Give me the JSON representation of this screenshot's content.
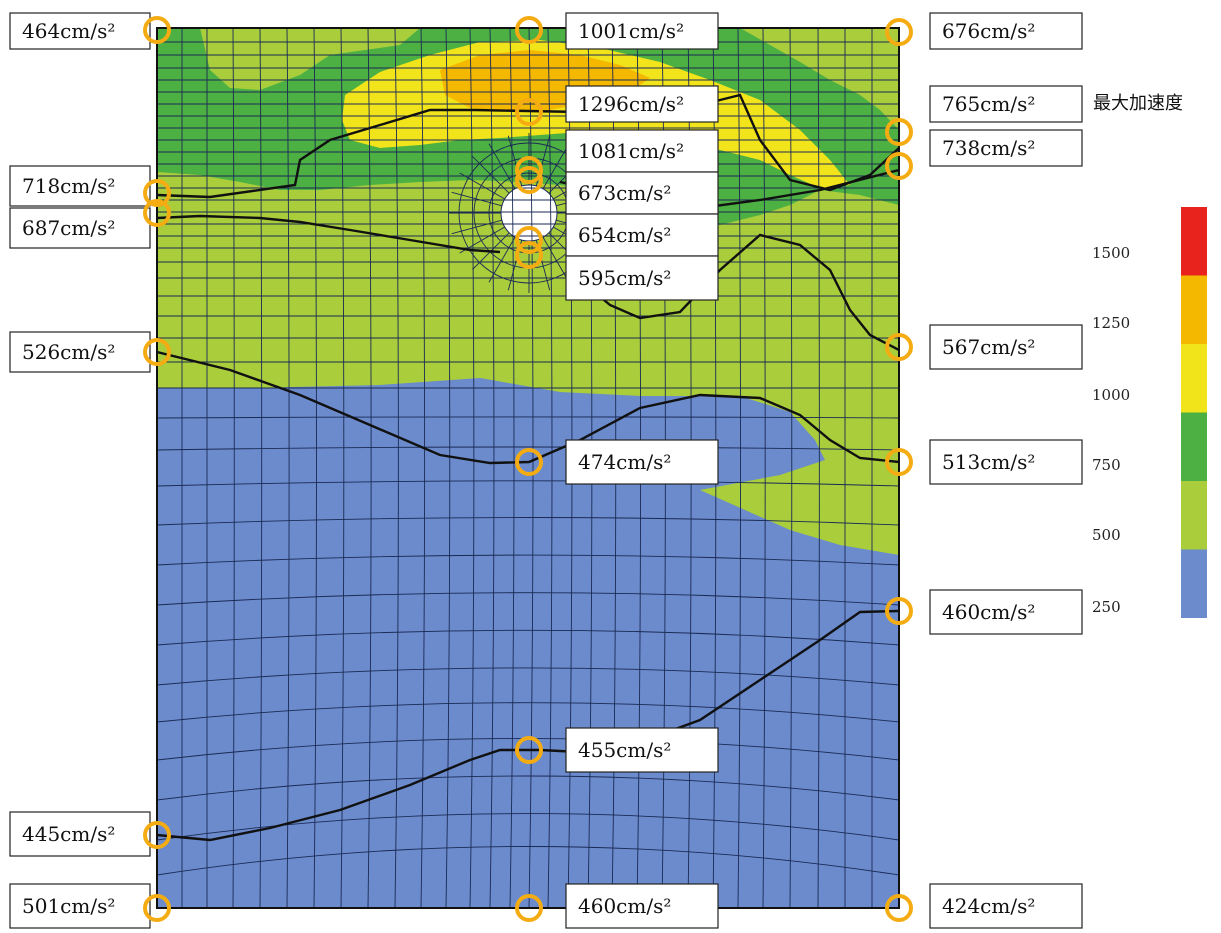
{
  "legend": {
    "title": "最大加速度",
    "ticks": [
      "1500",
      "1250",
      "1000",
      "750",
      "500",
      "250"
    ],
    "colors": [
      "#e8231e",
      "#f5b800",
      "#f2e41a",
      "#4cb043",
      "#a9cd3b",
      "#6b8bcc"
    ]
  },
  "colors": {
    "band_250_500": "#6b8bcc",
    "band_500_750": "#a9cd3b",
    "band_750_1000": "#4cb043",
    "band_1000_1250": "#f2e41a",
    "band_1250_1500": "#f5b800",
    "marker": "#f5ac12"
  },
  "points": [
    {
      "name": "point-left-top",
      "value": "464cm/s²"
    },
    {
      "name": "point-center-top",
      "value": "1001cm/s²"
    },
    {
      "name": "point-right-top",
      "value": "676cm/s²"
    },
    {
      "name": "point-right-765",
      "value": "765cm/s²"
    },
    {
      "name": "point-center-1296",
      "value": "1296cm/s²"
    },
    {
      "name": "point-center-1081",
      "value": "1081cm/s²"
    },
    {
      "name": "point-right-738",
      "value": "738cm/s²"
    },
    {
      "name": "point-left-718",
      "value": "718cm/s²"
    },
    {
      "name": "point-center-673",
      "value": "673cm/s²"
    },
    {
      "name": "point-left-687",
      "value": "687cm/s²"
    },
    {
      "name": "point-center-654",
      "value": "654cm/s²"
    },
    {
      "name": "point-center-595",
      "value": "595cm/s²"
    },
    {
      "name": "point-left-526",
      "value": "526cm/s²"
    },
    {
      "name": "point-right-567",
      "value": "567cm/s²"
    },
    {
      "name": "point-center-474",
      "value": "474cm/s²"
    },
    {
      "name": "point-right-513",
      "value": "513cm/s²"
    },
    {
      "name": "point-right-460",
      "value": "460cm/s²"
    },
    {
      "name": "point-center-455",
      "value": "455cm/s²"
    },
    {
      "name": "point-left-445",
      "value": "445cm/s²"
    },
    {
      "name": "point-left-bottom",
      "value": "501cm/s²"
    },
    {
      "name": "point-center-bottom",
      "value": "460cm/s²"
    },
    {
      "name": "point-right-bottom",
      "value": "424cm/s²"
    }
  ]
}
